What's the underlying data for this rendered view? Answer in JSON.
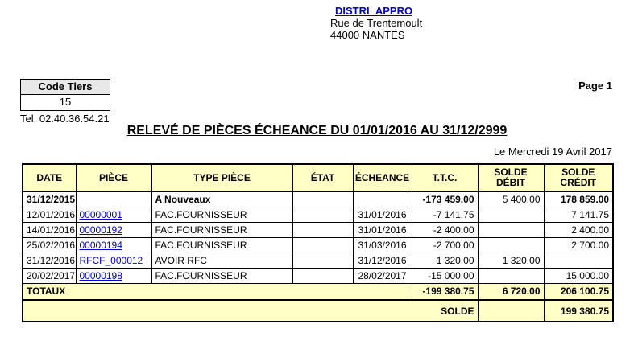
{
  "company": {
    "name": "DISTRI_APPRO",
    "address_line1": "Rue de Trentemoult",
    "address_line2": "44000 NANTES"
  },
  "page_label": "Page 1",
  "tiers": {
    "header": "Code Tiers",
    "code": "15",
    "tel": "Tel: 02.40.36.54.21"
  },
  "title": "RELEVÉ DE PIÈCES ÉCHEANCE DU 01/01/2016 AU 31/12/2999",
  "date_line": "Le Mercredi 19 Avril 2017",
  "table": {
    "headers": [
      "DATE",
      "PIÈCE",
      "TYPE PIÈCE",
      "ÉTAT",
      "ÉCHEANCE",
      "T.T.C.",
      "SOLDE\nDÉBIT",
      "SOLDE\nCRÉDIT"
    ],
    "rows": [
      {
        "date": "31/12/2015",
        "piece": "",
        "type": "A Nouveaux",
        "etat": "",
        "echeance": "",
        "ttc": "-173 459.00",
        "debit": "5 400.00",
        "credit": "178 859.00",
        "bold": true
      },
      {
        "date": "12/01/2016",
        "piece": "00000001",
        "type": "FAC.FOURNISSEUR",
        "etat": "",
        "echeance": "31/01/2016",
        "ttc": "-7 141.75",
        "debit": "",
        "credit": "7 141.75",
        "bold": false
      },
      {
        "date": "14/01/2016",
        "piece": "00000192",
        "type": "FAC.FOURNISSEUR",
        "etat": "",
        "echeance": "31/01/2016",
        "ttc": "-2 400.00",
        "debit": "",
        "credit": "2 400.00",
        "bold": false
      },
      {
        "date": "25/02/2016",
        "piece": "00000194",
        "type": "FAC.FOURNISSEUR",
        "etat": "",
        "echeance": "31/03/2016",
        "ttc": "-2 700.00",
        "debit": "",
        "credit": "2 700.00",
        "bold": false
      },
      {
        "date": "31/12/2016",
        "piece": "RFCF_000012",
        "type": "AVOIR RFC",
        "etat": "",
        "echeance": "31/12/2016",
        "ttc": "1 320.00",
        "debit": "1 320.00",
        "credit": "",
        "bold": false
      },
      {
        "date": "20/02/2017",
        "piece": "00000198",
        "type": "FAC.FOURNISSEUR",
        "etat": "",
        "echeance": "28/02/2017",
        "ttc": "-15 000.00",
        "debit": "",
        "credit": "15 000.00",
        "bold": false
      }
    ],
    "totals": {
      "label": "TOTAUX",
      "ttc": "-199 380.75",
      "debit": "6 720.00",
      "credit": "206 100.75"
    },
    "solde": {
      "label": "SOLDE",
      "debit": "",
      "credit": "199 380.75"
    }
  },
  "colors": {
    "link_blue": "#0000CC",
    "header_yellow": "#FFFFC6",
    "tiers_gray": "#E8E8E8"
  }
}
